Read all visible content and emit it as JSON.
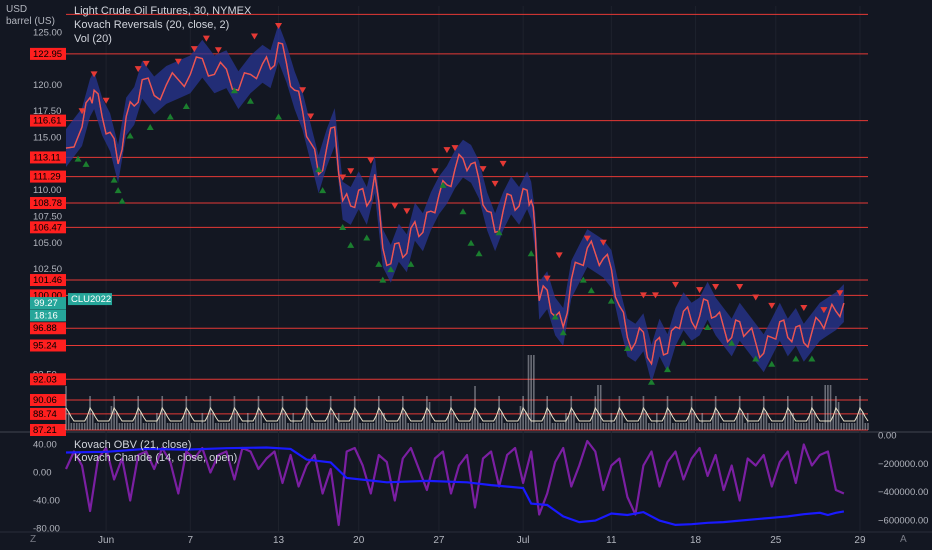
{
  "chart_data": {
    "type": "line",
    "title": "Light Crude Oil Futures, 30, NYMEX",
    "unit_top": "USD",
    "unit_bottom": "barrel (US)",
    "legend": [
      "Kovach Reversals (20, close, 2)",
      "Vol (20)"
    ],
    "ylim": [
      87.21,
      127.5
    ],
    "price_ticks": [
      {
        "v": 125.0,
        "t": "125.00"
      },
      {
        "v": 120.0,
        "t": "120.00"
      },
      {
        "v": 117.5,
        "t": "117.50"
      },
      {
        "v": 115.0,
        "t": "115.00"
      },
      {
        "v": 110.0,
        "t": "110.00"
      },
      {
        "v": 107.5,
        "t": "107.50"
      },
      {
        "v": 105.0,
        "t": "105.00"
      },
      {
        "v": 102.5,
        "t": "102.50"
      },
      {
        "v": 92.5,
        "t": "92.50"
      }
    ],
    "level_labels": [
      {
        "v": 122.95,
        "t": "122.95"
      },
      {
        "v": 116.61,
        "t": "116.61"
      },
      {
        "v": 113.11,
        "t": "113.11"
      },
      {
        "v": 111.29,
        "t": "111.29"
      },
      {
        "v": 108.78,
        "t": "108.78"
      },
      {
        "v": 106.47,
        "t": "106.47"
      },
      {
        "v": 101.46,
        "t": "101.46"
      },
      {
        "v": 100.0,
        "t": "100.00"
      },
      {
        "v": 96.88,
        "t": "96.88"
      },
      {
        "v": 95.24,
        "t": "95.24"
      },
      {
        "v": 92.03,
        "t": "92.03"
      },
      {
        "v": 90.06,
        "t": "90.06"
      },
      {
        "v": 88.74,
        "t": "88.74"
      },
      {
        "v": 87.21,
        "t": "87.21"
      }
    ],
    "extra_level": 126.7,
    "price_labels": [
      {
        "v": 99.27,
        "t": "99.27",
        "color": "#26a69a"
      },
      {
        "v": 98.1,
        "t": "18:16",
        "color": "#26a69a"
      }
    ],
    "symbol_tag": "CLU2022",
    "symbol_tag_value": 99.27,
    "x_labels": [
      {
        "i": 0.05,
        "t": "Jun"
      },
      {
        "i": 0.155,
        "t": "7"
      },
      {
        "i": 0.265,
        "t": "13"
      },
      {
        "i": 0.365,
        "t": "20"
      },
      {
        "i": 0.465,
        "t": "27"
      },
      {
        "i": 0.57,
        "t": "Jul"
      },
      {
        "i": 0.68,
        "t": "11"
      },
      {
        "i": 0.785,
        "t": "18"
      },
      {
        "i": 0.885,
        "t": "25"
      },
      {
        "i": 0.99,
        "t": "29"
      }
    ],
    "price_series": [
      [
        0.0,
        114.0
      ],
      [
        0.02,
        116.0
      ],
      [
        0.03,
        118.8
      ],
      [
        0.035,
        119.5
      ],
      [
        0.045,
        117.0
      ],
      [
        0.055,
        115.5
      ],
      [
        0.065,
        112.5
      ],
      [
        0.075,
        117.0
      ],
      [
        0.085,
        118.0
      ],
      [
        0.095,
        120.5
      ],
      [
        0.11,
        119.0
      ],
      [
        0.125,
        120.0
      ],
      [
        0.14,
        120.5
      ],
      [
        0.155,
        121.0
      ],
      [
        0.17,
        122.5
      ],
      [
        0.185,
        121.0
      ],
      [
        0.2,
        121.5
      ],
      [
        0.215,
        119.5
      ],
      [
        0.23,
        121.0
      ],
      [
        0.245,
        122.0
      ],
      [
        0.255,
        121.5
      ],
      [
        0.265,
        124.0
      ],
      [
        0.275,
        122.0
      ],
      [
        0.285,
        119.5
      ],
      [
        0.295,
        117.5
      ],
      [
        0.305,
        114.5
      ],
      [
        0.315,
        111.5
      ],
      [
        0.325,
        114.0
      ],
      [
        0.335,
        116.0
      ],
      [
        0.345,
        109.0
      ],
      [
        0.355,
        108.5
      ],
      [
        0.365,
        110.0
      ],
      [
        0.375,
        108.5
      ],
      [
        0.385,
        111.5
      ],
      [
        0.395,
        104.5
      ],
      [
        0.405,
        103.0
      ],
      [
        0.415,
        105.0
      ],
      [
        0.425,
        104.0
      ],
      [
        0.435,
        107.0
      ],
      [
        0.445,
        106.0
      ],
      [
        0.455,
        108.0
      ],
      [
        0.465,
        109.5
      ],
      [
        0.475,
        110.5
      ],
      [
        0.485,
        112.0
      ],
      [
        0.495,
        113.0
      ],
      [
        0.505,
        112.5
      ],
      [
        0.515,
        111.0
      ],
      [
        0.525,
        108.0
      ],
      [
        0.535,
        106.0
      ],
      [
        0.545,
        108.0
      ],
      [
        0.555,
        109.5
      ],
      [
        0.565,
        108.5
      ],
      [
        0.575,
        110.0
      ],
      [
        0.58,
        109.0
      ],
      [
        0.585,
        106.0
      ],
      [
        0.59,
        99.5
      ],
      [
        0.6,
        100.5
      ],
      [
        0.61,
        98.0
      ],
      [
        0.62,
        97.0
      ],
      [
        0.63,
        101.5
      ],
      [
        0.64,
        103.0
      ],
      [
        0.65,
        104.5
      ],
      [
        0.66,
        104.0
      ],
      [
        0.67,
        103.5
      ],
      [
        0.68,
        102.5
      ],
      [
        0.69,
        99.0
      ],
      [
        0.7,
        96.0
      ],
      [
        0.71,
        95.5
      ],
      [
        0.72,
        96.5
      ],
      [
        0.73,
        93.5
      ],
      [
        0.74,
        96.0
      ],
      [
        0.75,
        94.5
      ],
      [
        0.76,
        97.0
      ],
      [
        0.77,
        98.5
      ],
      [
        0.78,
        97.5
      ],
      [
        0.79,
        98.0
      ],
      [
        0.8,
        99.5
      ],
      [
        0.81,
        98.0
      ],
      [
        0.82,
        97.0
      ],
      [
        0.83,
        96.0
      ],
      [
        0.84,
        97.5
      ],
      [
        0.85,
        96.5
      ],
      [
        0.86,
        95.5
      ],
      [
        0.87,
        94.5
      ],
      [
        0.88,
        96.0
      ],
      [
        0.89,
        97.5
      ],
      [
        0.9,
        96.0
      ],
      [
        0.91,
        97.0
      ],
      [
        0.92,
        95.5
      ],
      [
        0.93,
        96.5
      ],
      [
        0.94,
        97.5
      ],
      [
        0.95,
        98.0
      ],
      [
        0.96,
        98.5
      ],
      [
        0.97,
        99.27
      ]
    ],
    "sell_marks": [
      [
        0.02,
        117.5
      ],
      [
        0.035,
        121.0
      ],
      [
        0.05,
        118.5
      ],
      [
        0.09,
        121.5
      ],
      [
        0.1,
        122.0
      ],
      [
        0.14,
        122.2
      ],
      [
        0.16,
        123.4
      ],
      [
        0.175,
        124.4
      ],
      [
        0.19,
        123.3
      ],
      [
        0.235,
        124.6
      ],
      [
        0.265,
        125.6
      ],
      [
        0.295,
        119.5
      ],
      [
        0.305,
        117.0
      ],
      [
        0.345,
        111.2
      ],
      [
        0.355,
        111.8
      ],
      [
        0.38,
        112.8
      ],
      [
        0.41,
        108.5
      ],
      [
        0.425,
        108.0
      ],
      [
        0.46,
        111.8
      ],
      [
        0.475,
        113.8
      ],
      [
        0.485,
        114.0
      ],
      [
        0.52,
        112.0
      ],
      [
        0.535,
        110.6
      ],
      [
        0.545,
        112.5
      ],
      [
        0.6,
        101.6
      ],
      [
        0.615,
        103.8
      ],
      [
        0.65,
        105.4
      ],
      [
        0.67,
        105.0
      ],
      [
        0.72,
        100.0
      ],
      [
        0.735,
        100.0
      ],
      [
        0.76,
        101.0
      ],
      [
        0.79,
        100.5
      ],
      [
        0.81,
        100.8
      ],
      [
        0.84,
        100.8
      ],
      [
        0.86,
        99.8
      ],
      [
        0.88,
        99.0
      ],
      [
        0.92,
        98.8
      ],
      [
        0.945,
        98.6
      ],
      [
        0.965,
        100.2
      ]
    ],
    "buy_marks": [
      [
        0.015,
        113.0
      ],
      [
        0.025,
        112.5
      ],
      [
        0.06,
        111.0
      ],
      [
        0.065,
        110.0
      ],
      [
        0.07,
        109.0
      ],
      [
        0.08,
        115.2
      ],
      [
        0.105,
        116.0
      ],
      [
        0.13,
        117.0
      ],
      [
        0.15,
        118.0
      ],
      [
        0.21,
        119.5
      ],
      [
        0.23,
        118.5
      ],
      [
        0.265,
        117.0
      ],
      [
        0.315,
        112.0
      ],
      [
        0.32,
        110.0
      ],
      [
        0.345,
        106.5
      ],
      [
        0.355,
        104.8
      ],
      [
        0.375,
        105.5
      ],
      [
        0.39,
        103.0
      ],
      [
        0.395,
        101.5
      ],
      [
        0.405,
        102.5
      ],
      [
        0.43,
        103.0
      ],
      [
        0.47,
        110.5
      ],
      [
        0.495,
        108.0
      ],
      [
        0.505,
        105.0
      ],
      [
        0.515,
        104.0
      ],
      [
        0.54,
        106.0
      ],
      [
        0.58,
        104.0
      ],
      [
        0.61,
        98.0
      ],
      [
        0.62,
        96.5
      ],
      [
        0.645,
        101.5
      ],
      [
        0.655,
        100.5
      ],
      [
        0.68,
        99.5
      ],
      [
        0.7,
        95.0
      ],
      [
        0.73,
        91.8
      ],
      [
        0.75,
        93.0
      ],
      [
        0.77,
        95.5
      ],
      [
        0.8,
        97.0
      ],
      [
        0.83,
        95.5
      ],
      [
        0.86,
        94.0
      ],
      [
        0.88,
        93.5
      ],
      [
        0.91,
        94.0
      ],
      [
        0.93,
        94.0
      ]
    ],
    "osc_ylim": [
      -85,
      55
    ],
    "osc_ticks": [
      {
        "v": 40,
        "t": "40.00"
      },
      {
        "v": 0,
        "t": "0.00"
      },
      {
        "v": -40,
        "t": "-40.00"
      },
      {
        "v": -80,
        "t": "-80.00"
      }
    ],
    "osc_legend": [
      "Kovach OBV (21, close)",
      "Kovach Chande (14, close, open)"
    ],
    "obv_ylim": [
      -680000,
      10000
    ],
    "obv_ticks": [
      {
        "v": 0,
        "t": "0.00"
      },
      {
        "v": -200000,
        "t": "−200000.00"
      },
      {
        "v": -400000,
        "t": "−400000.00"
      },
      {
        "v": -600000,
        "t": "−600000.00"
      }
    ],
    "obv_series": [
      [
        0.0,
        -120000
      ],
      [
        0.05,
        -115000
      ],
      [
        0.1,
        -95000
      ],
      [
        0.15,
        -100000
      ],
      [
        0.2,
        -90000
      ],
      [
        0.25,
        -85000
      ],
      [
        0.28,
        -95000
      ],
      [
        0.3,
        -170000
      ],
      [
        0.33,
        -190000
      ],
      [
        0.35,
        -300000
      ],
      [
        0.4,
        -330000
      ],
      [
        0.45,
        -320000
      ],
      [
        0.5,
        -330000
      ],
      [
        0.53,
        -350000
      ],
      [
        0.57,
        -370000
      ],
      [
        0.58,
        -480000
      ],
      [
        0.6,
        -490000
      ],
      [
        0.62,
        -570000
      ],
      [
        0.64,
        -610000
      ],
      [
        0.66,
        -600000
      ],
      [
        0.68,
        -550000
      ],
      [
        0.7,
        -560000
      ],
      [
        0.72,
        -540000
      ],
      [
        0.74,
        -600000
      ],
      [
        0.76,
        -630000
      ],
      [
        0.78,
        -625000
      ],
      [
        0.8,
        -615000
      ],
      [
        0.82,
        -610000
      ],
      [
        0.84,
        -600000
      ],
      [
        0.86,
        -590000
      ],
      [
        0.88,
        -580000
      ],
      [
        0.9,
        -570000
      ],
      [
        0.92,
        -555000
      ],
      [
        0.94,
        -545000
      ],
      [
        0.95,
        -560000
      ],
      [
        0.96,
        -545000
      ],
      [
        0.97,
        -535000
      ]
    ],
    "chande_series": [
      [
        0.0,
        5
      ],
      [
        0.01,
        30
      ],
      [
        0.02,
        10
      ],
      [
        0.03,
        -55
      ],
      [
        0.04,
        20
      ],
      [
        0.05,
        35
      ],
      [
        0.06,
        -10
      ],
      [
        0.07,
        20
      ],
      [
        0.08,
        -40
      ],
      [
        0.09,
        25
      ],
      [
        0.1,
        30
      ],
      [
        0.11,
        5
      ],
      [
        0.12,
        35
      ],
      [
        0.13,
        15
      ],
      [
        0.14,
        -30
      ],
      [
        0.15,
        30
      ],
      [
        0.16,
        20
      ],
      [
        0.17,
        35
      ],
      [
        0.18,
        0
      ],
      [
        0.19,
        25
      ],
      [
        0.2,
        30
      ],
      [
        0.21,
        -10
      ],
      [
        0.22,
        35
      ],
      [
        0.23,
        30
      ],
      [
        0.24,
        5
      ],
      [
        0.25,
        20
      ],
      [
        0.26,
        30
      ],
      [
        0.27,
        -15
      ],
      [
        0.28,
        25
      ],
      [
        0.29,
        -20
      ],
      [
        0.3,
        10
      ],
      [
        0.31,
        25
      ],
      [
        0.32,
        -30
      ],
      [
        0.33,
        5
      ],
      [
        0.34,
        -75
      ],
      [
        0.35,
        30
      ],
      [
        0.36,
        35
      ],
      [
        0.37,
        10
      ],
      [
        0.38,
        -30
      ],
      [
        0.39,
        25
      ],
      [
        0.4,
        15
      ],
      [
        0.41,
        -40
      ],
      [
        0.42,
        20
      ],
      [
        0.43,
        35
      ],
      [
        0.44,
        5
      ],
      [
        0.45,
        -25
      ],
      [
        0.46,
        20
      ],
      [
        0.47,
        30
      ],
      [
        0.48,
        -30
      ],
      [
        0.49,
        10
      ],
      [
        0.5,
        25
      ],
      [
        0.51,
        -50
      ],
      [
        0.52,
        20
      ],
      [
        0.53,
        30
      ],
      [
        0.54,
        -20
      ],
      [
        0.55,
        25
      ],
      [
        0.56,
        35
      ],
      [
        0.57,
        -15
      ],
      [
        0.58,
        30
      ],
      [
        0.59,
        -60
      ],
      [
        0.6,
        -30
      ],
      [
        0.61,
        15
      ],
      [
        0.62,
        35
      ],
      [
        0.63,
        -20
      ],
      [
        0.64,
        10
      ],
      [
        0.65,
        45
      ],
      [
        0.66,
        30
      ],
      [
        0.67,
        -25
      ],
      [
        0.68,
        10
      ],
      [
        0.69,
        20
      ],
      [
        0.7,
        -35
      ],
      [
        0.71,
        -60
      ],
      [
        0.72,
        10
      ],
      [
        0.73,
        30
      ],
      [
        0.74,
        -20
      ],
      [
        0.75,
        15
      ],
      [
        0.76,
        30
      ],
      [
        0.77,
        -10
      ],
      [
        0.78,
        20
      ],
      [
        0.79,
        35
      ],
      [
        0.8,
        -5
      ],
      [
        0.81,
        25
      ],
      [
        0.82,
        -25
      ],
      [
        0.83,
        10
      ],
      [
        0.84,
        -40
      ],
      [
        0.85,
        20
      ],
      [
        0.86,
        10
      ],
      [
        0.87,
        25
      ],
      [
        0.88,
        -20
      ],
      [
        0.89,
        15
      ],
      [
        0.9,
        30
      ],
      [
        0.91,
        -15
      ],
      [
        0.92,
        40
      ],
      [
        0.93,
        10
      ],
      [
        0.94,
        25
      ],
      [
        0.95,
        30
      ],
      [
        0.96,
        -25
      ],
      [
        0.97,
        -30
      ]
    ],
    "colors": {
      "sell": "#e53935",
      "buy": "#1b7f2f",
      "price": "#ef5350",
      "band": "#283593",
      "level": "#e53935",
      "obv": "#1a1aff",
      "chande": "#7b1fa2",
      "volume": "#b0b3bb",
      "vol_ma": "#e8e0c8"
    }
  },
  "toolbar": {
    "zoom_label": "Z",
    "auto_label": "A"
  }
}
